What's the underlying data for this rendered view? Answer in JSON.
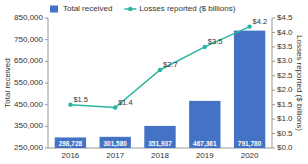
{
  "chart_data": {
    "type": "bar",
    "categories": [
      "2016",
      "2017",
      "2018",
      "2019",
      "2020"
    ],
    "series": [
      {
        "name": "Total received",
        "type": "bar",
        "color": "#4472c4",
        "values": [
          298728,
          301580,
          351937,
          467361,
          791780
        ],
        "value_labels": [
          "298,728",
          "301,580",
          "351,937",
          "467,361",
          "791,780"
        ]
      },
      {
        "name": "Losses reported ($ billions)",
        "type": "line",
        "axis": "y2",
        "color": "#2ab5a0",
        "marker": "circle",
        "values": [
          1.5,
          1.4,
          2.7,
          3.5,
          4.2
        ],
        "value_labels": [
          "$1.5",
          "$1.4",
          "$2.7",
          "$3.5",
          "$4.2"
        ]
      }
    ],
    "ylabel": "Total received",
    "y2label": "Losses reported ($ billions)",
    "ylim": [
      250000,
      850000
    ],
    "yticks": [
      {
        "value": 250000,
        "label": "250,000"
      },
      {
        "value": 350000,
        "label": "350,000"
      },
      {
        "value": 450000,
        "label": "450,000"
      },
      {
        "value": 550000,
        "label": "550,000"
      },
      {
        "value": 650000,
        "label": "650,000"
      },
      {
        "value": 750000,
        "label": "750,000"
      },
      {
        "value": 850000,
        "label": "850,000"
      }
    ],
    "y2lim": [
      0.0,
      4.5
    ],
    "y2ticks": [
      {
        "value": 0.0,
        "label": "$0.0"
      },
      {
        "value": 0.5,
        "label": "$0.5"
      },
      {
        "value": 1.0,
        "label": "$1.0"
      },
      {
        "value": 1.5,
        "label": "$1.5"
      },
      {
        "value": 2.0,
        "label": "$2.0"
      },
      {
        "value": 2.5,
        "label": "$2.5"
      },
      {
        "value": 3.0,
        "label": "$3.0"
      },
      {
        "value": 3.5,
        "label": "$3.5"
      },
      {
        "value": 4.0,
        "label": "$4.0"
      },
      {
        "value": 4.5,
        "label": "$4.5"
      }
    ],
    "data_labels": true,
    "legend": "upper left",
    "grid": false
  }
}
